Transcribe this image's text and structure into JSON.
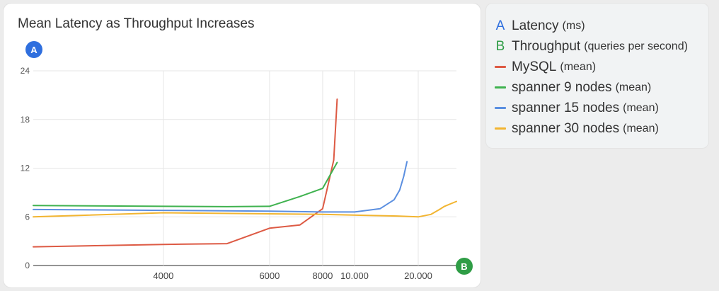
{
  "chart_data": {
    "type": "line",
    "title": "Mean Latency as Throughput Increases",
    "x_axis": {
      "badge": "A",
      "badge_note": "",
      "ticks": [
        4000,
        6000,
        8000,
        10000,
        20000
      ],
      "tick_labels": [
        "4000",
        "6000",
        "8000",
        "10.000",
        "20.000"
      ],
      "range": [
        2840,
        50000
      ],
      "scale": "reciprocal"
    },
    "y_axis": {
      "badge": "A",
      "ticks": [
        0,
        6,
        12,
        18,
        24
      ],
      "tick_labels": [
        "0",
        "6",
        "12",
        "18",
        "24"
      ],
      "range": [
        0,
        24
      ]
    },
    "x_badge": "B",
    "grid": true,
    "legend_position": "right",
    "series": [
      {
        "name": "MySQL (mean)",
        "color": "#dd5a44",
        "points": [
          [
            2840,
            2.3
          ],
          [
            4000,
            2.6
          ],
          [
            5000,
            2.7
          ],
          [
            6000,
            4.6
          ],
          [
            7000,
            5.0
          ],
          [
            8000,
            7.0
          ],
          [
            8600,
            13.0
          ],
          [
            8800,
            20.5
          ]
        ]
      },
      {
        "name": "spanner 9 nodes (mean)",
        "color": "#3fb24f",
        "points": [
          [
            2840,
            7.4
          ],
          [
            4000,
            7.3
          ],
          [
            5000,
            7.25
          ],
          [
            6000,
            7.3
          ],
          [
            7000,
            8.5
          ],
          [
            8000,
            9.5
          ],
          [
            8800,
            12.7
          ]
        ]
      },
      {
        "name": "spanner 15 nodes (mean)",
        "color": "#5b8fe0",
        "points": [
          [
            2840,
            6.9
          ],
          [
            4000,
            6.8
          ],
          [
            6000,
            6.7
          ],
          [
            8000,
            6.6
          ],
          [
            10000,
            6.6
          ],
          [
            12500,
            7.0
          ],
          [
            14500,
            8.1
          ],
          [
            15500,
            9.3
          ],
          [
            16300,
            11.0
          ],
          [
            17000,
            12.8
          ]
        ]
      },
      {
        "name": "spanner 30 nodes (mean)",
        "color": "#f2b531",
        "points": [
          [
            2840,
            6.0
          ],
          [
            4000,
            6.5
          ],
          [
            8000,
            6.3
          ],
          [
            15000,
            6.1
          ],
          [
            20000,
            6.0
          ],
          [
            25000,
            6.3
          ],
          [
            30000,
            6.9
          ],
          [
            34000,
            7.3
          ],
          [
            50000,
            7.9
          ]
        ]
      }
    ]
  },
  "legend": {
    "items": [
      {
        "kind": "badge",
        "mark": "A",
        "color": "#2f6fde",
        "label": "Latency",
        "sub": "(ms)"
      },
      {
        "kind": "badge",
        "mark": "B",
        "color": "#2f9d46",
        "label": "Throughput",
        "sub": "(queries per second)"
      },
      {
        "kind": "line",
        "color": "#dd5a44",
        "label": "MySQL",
        "sub": "(mean)"
      },
      {
        "kind": "line",
        "color": "#3fb24f",
        "label": "spanner 9 nodes",
        "sub": "(mean)"
      },
      {
        "kind": "line",
        "color": "#5b8fe0",
        "label": "spanner 15 nodes",
        "sub": "(mean)"
      },
      {
        "kind": "line",
        "color": "#f2b531",
        "label": "spanner 30 nodes",
        "sub": "(mean)"
      }
    ]
  },
  "badges": {
    "y": {
      "text": "A",
      "color": "#2f6fde"
    },
    "x": {
      "text": "B",
      "color": "#2f9d46"
    }
  }
}
